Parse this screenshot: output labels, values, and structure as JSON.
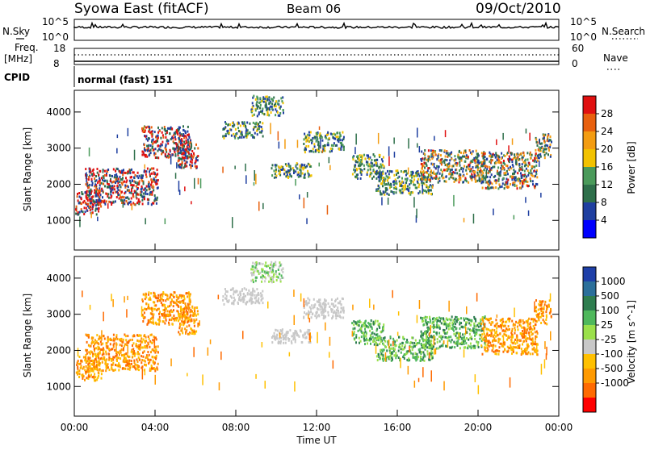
{
  "header": {
    "title": "Syowa East (fitACF)",
    "beam": "Beam 06",
    "date": "09/Oct/2010"
  },
  "sky_panel": {
    "left_label": "N.Sky",
    "right_label": "N.Search",
    "ticks": [
      "10^5",
      "10^0"
    ],
    "right_ticks": [
      "10^5",
      "10^0"
    ]
  },
  "freq_panel": {
    "left_label_1": "Freq.",
    "left_label_2": "[MHz]",
    "left_ticks": [
      "18",
      "8"
    ],
    "right_label": "Nave",
    "right_ticks": [
      "60",
      "0"
    ]
  },
  "cpid": {
    "label": "CPID",
    "value": "normal (fast) 151"
  },
  "colors": {
    "power_scale": [
      "#0000ff",
      "#1f3fa0",
      "#2e6f4a",
      "#4a9a5a",
      "#f2c200",
      "#f39c12",
      "#e8600e",
      "#e01010"
    ],
    "velocity_scale": [
      "#ff0000",
      "#ff6a00",
      "#ff9a00",
      "#ffc000",
      "#c8c8c8",
      "#9be04b",
      "#4fb85c",
      "#2e7d4f",
      "#2b6f9a",
      "#1e3fa8"
    ]
  },
  "chart_data": [
    {
      "type": "heatmap",
      "name": "power",
      "ylabel": "Slant Range [km]",
      "xlabel": "Time UT",
      "x_ticks": [
        "00:00",
        "04:00",
        "08:00",
        "12:00",
        "16:00",
        "20:00",
        "00:00"
      ],
      "y_ticks": [
        1000,
        2000,
        3000,
        4000
      ],
      "ylim": [
        180,
        4600
      ],
      "colorbar": {
        "label": "Power [dB]",
        "ticks": [
          "4",
          "8",
          "12",
          "16",
          "20",
          "24",
          "28"
        ]
      }
    },
    {
      "type": "heatmap",
      "name": "velocity",
      "ylabel": "Slant Range [km]",
      "xlabel": "Time UT",
      "x_ticks": [
        "00:00",
        "04:00",
        "08:00",
        "12:00",
        "16:00",
        "20:00",
        "00:00"
      ],
      "y_ticks": [
        1000,
        2000,
        3000,
        4000
      ],
      "ylim": [
        180,
        4600
      ],
      "colorbar": {
        "label": "Velocity [m s^-1]",
        "ticks": [
          "1000",
          "500",
          "100",
          "25",
          "-25",
          "-100",
          "-500",
          "-1000"
        ]
      }
    }
  ]
}
